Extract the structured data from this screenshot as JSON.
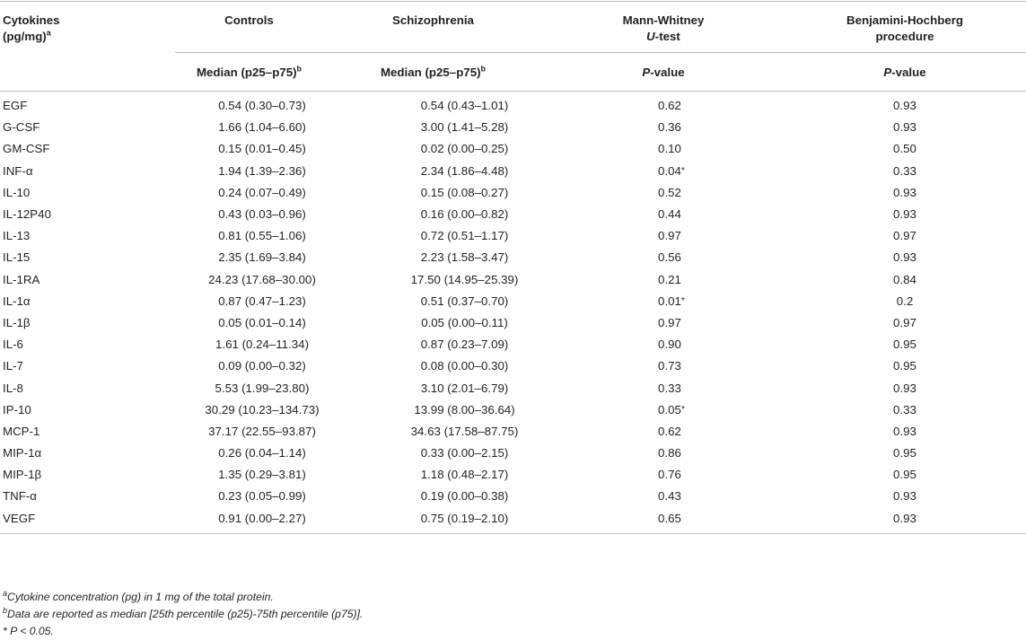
{
  "header": {
    "col0_line1": "Cytokines",
    "col0_line2": "(pg/mg)",
    "col0_sup": "a",
    "col1": "Controls",
    "col2": "Schizophrenia",
    "col3_line1": "Mann-Whitney",
    "col3_line2_italic": "U",
    "col3_line2_rest": "-test",
    "col4_line1": "Benjamini-Hochberg",
    "col4_line2": "procedure",
    "sub1": "Median (p25–p75)",
    "sub1_sup": "b",
    "sub2": "Median (p25–p75)",
    "sub2_sup": "b",
    "sub3_italic": "P",
    "sub3_rest": "-value",
    "sub4_italic": "P",
    "sub4_rest": "-value"
  },
  "rows": [
    {
      "name": "EGF",
      "controls": "0.54 (0.30–0.73)",
      "schizo": "0.54 (0.43–1.01)",
      "mw": "0.62",
      "mw_star": "",
      "bh": "0.93"
    },
    {
      "name": "G-CSF",
      "controls": "1.66 (1.04–6.60)",
      "schizo": "3.00 (1.41–5.28)",
      "mw": "0.36",
      "mw_star": "",
      "bh": "0.93"
    },
    {
      "name": "GM-CSF",
      "controls": "0.15 (0.01–0.45)",
      "schizo": "0.02 (0.00–0.25)",
      "mw": "0.10",
      "mw_star": "",
      "bh": "0.50"
    },
    {
      "name": "INF-α",
      "controls": "1.94 (1.39–2.36)",
      "schizo": "2.34 (1.86–4.48)",
      "mw": "0.04",
      "mw_star": "*",
      "bh": "0.33"
    },
    {
      "name": "IL-10",
      "controls": "0.24 (0.07–0.49)",
      "schizo": "0.15 (0.08–0.27)",
      "mw": "0.52",
      "mw_star": "",
      "bh": "0.93"
    },
    {
      "name": "IL-12P40",
      "controls": "0.43 (0.03–0.96)",
      "schizo": "0.16 (0.00–0.82)",
      "mw": "0.44",
      "mw_star": "",
      "bh": "0.93"
    },
    {
      "name": "IL-13",
      "controls": "0.81 (0.55–1.06)",
      "schizo": "0.72 (0.51–1.17)",
      "mw": "0.97",
      "mw_star": "",
      "bh": "0.97"
    },
    {
      "name": "IL-15",
      "controls": "2.35 (1.69–3.84)",
      "schizo": "2.23 (1.58–3.47)",
      "mw": "0.56",
      "mw_star": "",
      "bh": "0.93"
    },
    {
      "name": "IL-1RA",
      "controls": "24.23 (17.68–30.00)",
      "schizo": "17.50 (14.95–25.39)",
      "mw": "0.21",
      "mw_star": "",
      "bh": "0.84"
    },
    {
      "name": "IL-1α",
      "controls": "0.87 (0.47–1.23)",
      "schizo": "0.51 (0.37–0.70)",
      "mw": "0.01",
      "mw_star": "*",
      "bh": "0.2"
    },
    {
      "name": "IL-1β",
      "controls": "0.05 (0.01–0.14)",
      "schizo": "0.05 (0.00–0.11)",
      "mw": "0.97",
      "mw_star": "",
      "bh": "0.97"
    },
    {
      "name": "IL-6",
      "controls": "1.61 (0.24–11.34)",
      "schizo": "0.87 (0.23–7.09)",
      "mw": "0.90",
      "mw_star": "",
      "bh": "0.95"
    },
    {
      "name": "IL-7",
      "controls": "0.09 (0.00–0.32)",
      "schizo": "0.08 (0.00–0.30)",
      "mw": "0.73",
      "mw_star": "",
      "bh": "0.95"
    },
    {
      "name": "IL-8",
      "controls": "5.53 (1.99–23.80)",
      "schizo": "3.10 (2.01–6.79)",
      "mw": "0.33",
      "mw_star": "",
      "bh": "0.93"
    },
    {
      "name": "IP-10",
      "controls": "30.29 (10.23–134.73)",
      "schizo": "13.99 (8.00–36.64)",
      "mw": "0.05",
      "mw_star": "*",
      "bh": "0.33"
    },
    {
      "name": "MCP-1",
      "controls": "37.17 (22.55–93.87)",
      "schizo": "34.63 (17.58–87.75)",
      "mw": "0.62",
      "mw_star": "",
      "bh": "0.93"
    },
    {
      "name": "MIP-1α",
      "controls": "0.26 (0.04–1.14)",
      "schizo": "0.33 (0.00–2.15)",
      "mw": "0.86",
      "mw_star": "",
      "bh": "0.95"
    },
    {
      "name": "MIP-1β",
      "controls": "1.35 (0.29–3.81)",
      "schizo": "1.18 (0.48–2.17)",
      "mw": "0.76",
      "mw_star": "",
      "bh": "0.95"
    },
    {
      "name": "TNF-α",
      "controls": "0.23 (0.05–0.99)",
      "schizo": "0.19 (0.00–0.38)",
      "mw": "0.43",
      "mw_star": "",
      "bh": "0.93"
    },
    {
      "name": "VEGF",
      "controls": "0.91 (0.00–2.27)",
      "schizo": "0.75 (0.19–2.10)",
      "mw": "0.65",
      "mw_star": "",
      "bh": "0.93"
    }
  ],
  "footnotes": {
    "a_mark": "a",
    "a_text": "Cytokine concentration (pg) in 1 mg of the total protein.",
    "b_mark": "b",
    "b_text": "Data are reported as median [25th percentile (p25)-75th percentile (p75)].",
    "star_text": "* P < 0.05."
  }
}
